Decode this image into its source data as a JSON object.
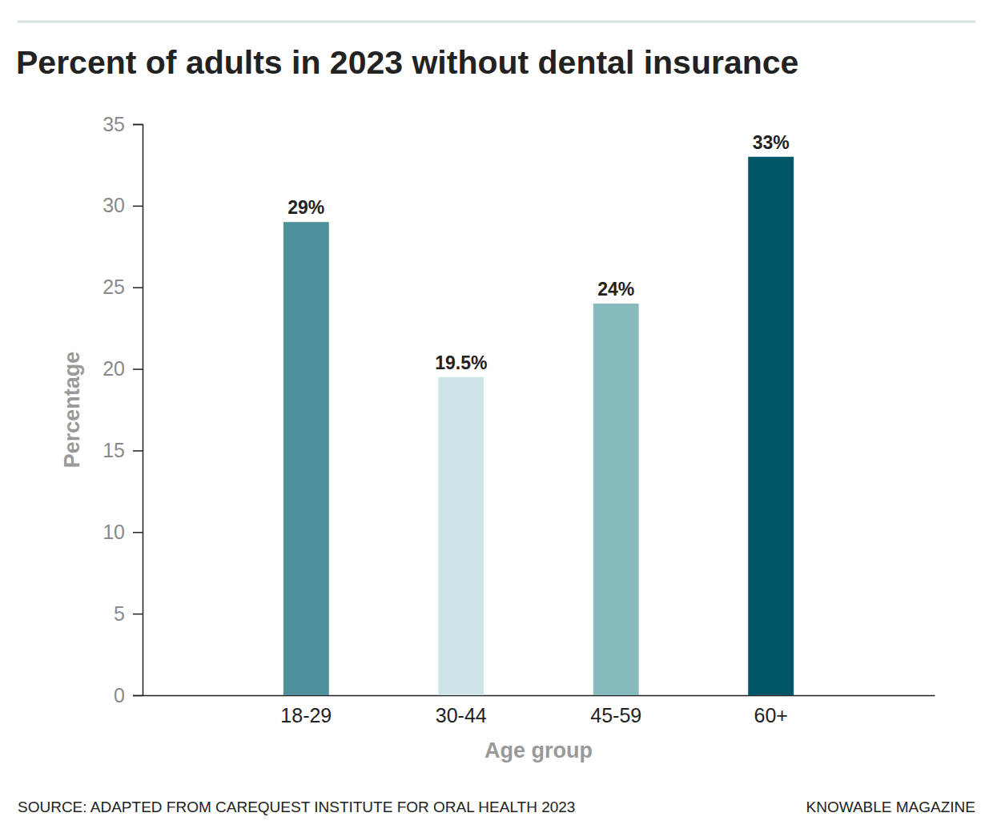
{
  "chart_data": {
    "type": "bar",
    "title": "Percent of adults in 2023 without dental insurance",
    "x_label": "Age group",
    "y_label": "Percentage",
    "categories": [
      "18-29",
      "30-44",
      "45-59",
      "60+"
    ],
    "values": [
      29,
      19.5,
      24,
      33
    ],
    "value_labels": [
      "29%",
      "19.5%",
      "24%",
      "33%"
    ],
    "colors": [
      "#4d909a",
      "#cfe4e6",
      "#86babd",
      "#015667"
    ],
    "ylim": [
      0,
      35
    ],
    "yticks": [
      0,
      5,
      10,
      15,
      20,
      25,
      30,
      35
    ],
    "grid": false,
    "data_labels": true,
    "source": "SOURCE: ADAPTED FROM CAREQUEST INSTITUTE FOR ORAL HEALTH 2023",
    "credit": "KNOWABLE MAGAZINE"
  }
}
